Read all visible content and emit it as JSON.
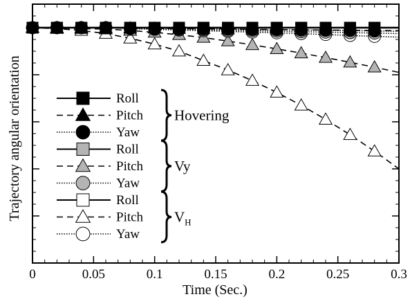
{
  "chart_data": {
    "type": "line",
    "title": "",
    "xlabel": "Time (Sec.)",
    "ylabel": "Trajectory angular orientation",
    "xlim": [
      0,
      0.3
    ],
    "x_ticks": [
      "0",
      "0.05",
      "0.1",
      "0.15",
      "0.2",
      "0.25",
      "0.3"
    ],
    "ylim": [
      -1,
      0.1
    ],
    "y_ticks_labeled": false,
    "grid": false,
    "legend_placement": "lower-left",
    "legend_groups": [
      {
        "label": "Hovering",
        "subscript": ""
      },
      {
        "label": "Vy",
        "subscript": ""
      },
      {
        "label": "V",
        "subscript": "H"
      }
    ],
    "x": [
      0,
      0.02,
      0.04,
      0.06,
      0.08,
      0.1,
      0.12,
      0.14,
      0.16,
      0.18,
      0.2,
      0.22,
      0.24,
      0.26,
      0.28,
      0.3
    ],
    "series": [
      {
        "name": "Roll",
        "group": "Hovering",
        "marker": "square",
        "fill": "black",
        "line": "solid",
        "values": [
          0,
          0,
          0,
          0,
          0,
          0,
          0,
          0,
          0,
          0,
          0,
          0,
          0,
          0,
          0,
          0
        ]
      },
      {
        "name": "Pitch",
        "group": "Hovering",
        "marker": "triangle",
        "fill": "black",
        "line": "dashed",
        "values": [
          0,
          0,
          0,
          0,
          -0.002,
          -0.003,
          -0.004,
          -0.005,
          -0.006,
          -0.007,
          -0.008,
          -0.009,
          -0.01,
          -0.011,
          -0.012,
          -0.013
        ]
      },
      {
        "name": "Yaw",
        "group": "Hovering",
        "marker": "circle",
        "fill": "black",
        "line": "dotted",
        "values": [
          0,
          0,
          0,
          0,
          -0.002,
          -0.003,
          -0.004,
          -0.005,
          -0.006,
          -0.008,
          -0.009,
          -0.01,
          -0.011,
          -0.012,
          -0.014,
          -0.015
        ]
      },
      {
        "name": "Roll",
        "group": "Vy",
        "marker": "square",
        "fill": "gray",
        "line": "solid",
        "values": [
          0,
          0,
          0,
          0,
          0,
          0,
          0,
          0,
          0,
          0,
          0,
          0,
          0,
          0,
          0,
          0
        ]
      },
      {
        "name": "Pitch",
        "group": "Vy",
        "marker": "triangle",
        "fill": "gray",
        "line": "dashed",
        "values": [
          0,
          -0.002,
          -0.004,
          -0.006,
          -0.012,
          -0.02,
          -0.03,
          -0.042,
          -0.057,
          -0.073,
          -0.09,
          -0.108,
          -0.127,
          -0.147,
          -0.168,
          -0.19
        ]
      },
      {
        "name": "Yaw",
        "group": "Vy",
        "marker": "circle",
        "fill": "gray",
        "line": "dotted",
        "values": [
          0,
          0,
          0,
          0,
          -0.003,
          -0.005,
          -0.007,
          -0.009,
          -0.011,
          -0.013,
          -0.015,
          -0.017,
          -0.019,
          -0.021,
          -0.023,
          -0.025
        ]
      },
      {
        "name": "Roll",
        "group": "V_H",
        "marker": "square",
        "fill": "white",
        "line": "solid",
        "values": [
          0,
          0,
          0,
          0,
          0,
          0,
          0,
          0,
          0,
          0,
          0,
          0,
          0,
          0,
          0,
          0
        ]
      },
      {
        "name": "Pitch",
        "group": "V_H",
        "marker": "triangle",
        "fill": "white",
        "line": "dashed",
        "values": [
          0,
          -0.004,
          -0.012,
          -0.025,
          -0.045,
          -0.07,
          -0.1,
          -0.14,
          -0.18,
          -0.225,
          -0.275,
          -0.33,
          -0.39,
          -0.455,
          -0.525,
          -0.6
        ]
      },
      {
        "name": "Yaw",
        "group": "V_H",
        "marker": "circle",
        "fill": "white",
        "line": "dotted",
        "values": [
          0,
          0,
          0,
          0,
          -0.004,
          -0.007,
          -0.01,
          -0.013,
          -0.016,
          -0.019,
          -0.022,
          -0.025,
          -0.029,
          -0.033,
          -0.037,
          -0.04
        ]
      }
    ]
  }
}
